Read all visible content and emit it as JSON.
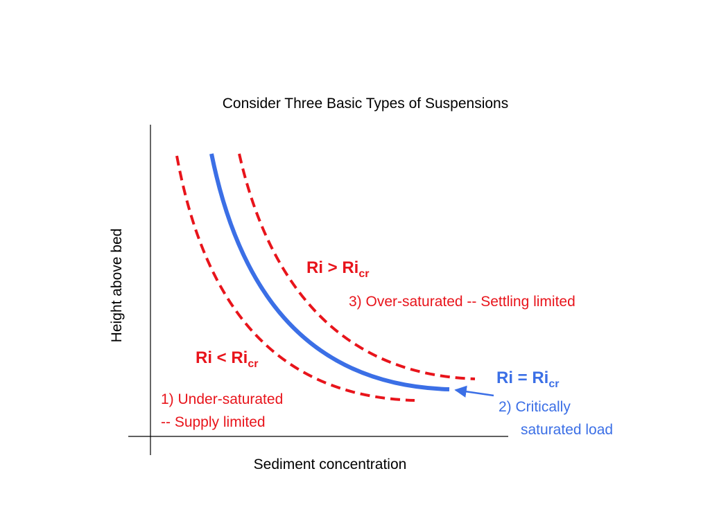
{
  "title": "Consider Three Basic Types of Suspensions",
  "axes": {
    "y_label": "Height above bed",
    "x_label": "Sediment concentration"
  },
  "curves": [
    {
      "condition": "Ri < Ri",
      "subscript": "cr",
      "description": [
        "1) Under-saturated",
        "-- Supply limited"
      ]
    },
    {
      "condition": "Ri = Ri",
      "subscript": "cr",
      "description": [
        "2) Critically",
        "saturated load"
      ]
    },
    {
      "condition": "Ri > Ri",
      "subscript": "cr",
      "description": [
        "3) Over-saturated -- Settling limited"
      ]
    }
  ]
}
